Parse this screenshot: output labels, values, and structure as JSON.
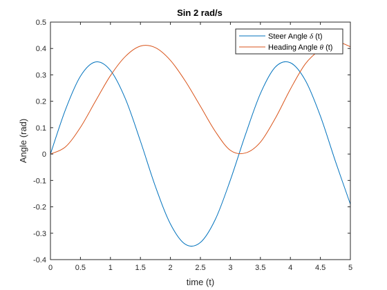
{
  "chart_data": {
    "type": "line",
    "title": "Sin 2 rad/s",
    "xlabel": "time (t)",
    "ylabel": "Angle (rad)",
    "xlim": [
      0,
      5
    ],
    "ylim": [
      -0.4,
      0.5
    ],
    "x_ticks": [
      0,
      0.5,
      1,
      1.5,
      2,
      2.5,
      3,
      3.5,
      4,
      4.5,
      5
    ],
    "x_tick_labels": [
      "0",
      "0.5",
      "1",
      "1.5",
      "2",
      "2.5",
      "3",
      "3.5",
      "4",
      "4.5",
      "5"
    ],
    "y_ticks": [
      -0.4,
      -0.3,
      -0.2,
      -0.1,
      0,
      0.1,
      0.2,
      0.3,
      0.4,
      0.5
    ],
    "y_tick_labels": [
      "-0.4",
      "-0.3",
      "-0.2",
      "-0.1",
      "0",
      "0.1",
      "0.2",
      "0.3",
      "0.4",
      "0.5"
    ],
    "grid": false,
    "legend_position": "top-right",
    "series": [
      {
        "name_prefix": "Steer Angle ",
        "name_symbol": "δ",
        "name_suffix": " (t)",
        "color": "#0072BD",
        "x": [
          0,
          0.25,
          0.5,
          0.75,
          1,
          1.25,
          1.5,
          1.75,
          2,
          2.25,
          2.5,
          2.75,
          3,
          3.25,
          3.5,
          3.75,
          4,
          4.25,
          4.5,
          4.75,
          5
        ],
        "y": [
          0,
          0.168,
          0.295,
          0.349,
          0.317,
          0.209,
          0.049,
          -0.123,
          -0.265,
          -0.342,
          -0.335,
          -0.247,
          -0.098,
          0.073,
          0.229,
          0.33,
          0.346,
          0.279,
          0.144,
          -0.027,
          -0.19
        ]
      },
      {
        "name_prefix": "Heading Angle ",
        "name_symbol": "θ",
        "name_suffix": " (t)",
        "color": "#D95319",
        "x": [
          0,
          0.25,
          0.5,
          0.75,
          1,
          1.25,
          1.5,
          1.75,
          2,
          2.25,
          2.5,
          2.75,
          3,
          3.25,
          3.5,
          3.75,
          4,
          4.25,
          4.5,
          4.75,
          5
        ],
        "y": [
          0,
          0.027,
          0.101,
          0.2,
          0.297,
          0.37,
          0.409,
          0.403,
          0.355,
          0.276,
          0.181,
          0.085,
          0.014,
          0.004,
          0.045,
          0.136,
          0.246,
          0.342,
          0.396,
          0.425,
          0.407
        ]
      }
    ]
  }
}
